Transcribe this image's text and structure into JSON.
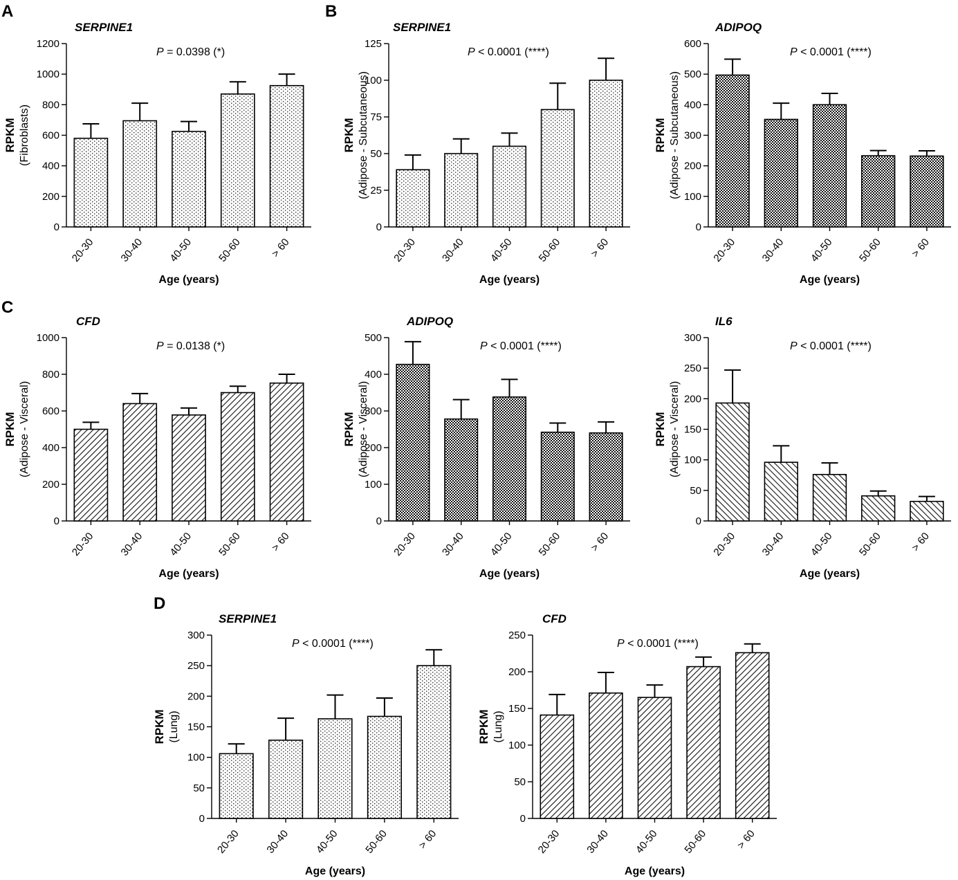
{
  "panels": [
    {
      "id": "A",
      "letter": "A"
    },
    {
      "id": "B",
      "letter": "B"
    },
    {
      "id": "C",
      "letter": "C"
    },
    {
      "id": "D",
      "letter": "D"
    }
  ],
  "chart_data": [
    {
      "id": "A-serpine1-fibroblasts",
      "panel": "A",
      "type": "bar",
      "title": "SERPINE1",
      "pvalue": {
        "label": "P",
        "text": " = 0.0398 (*)"
      },
      "ylabel": "RPKM",
      "ylabel_sub": "(Fibroblasts)",
      "xlabel": "Age (years)",
      "categories": [
        "20-30",
        "30-40",
        "40-50",
        "50-60",
        "> 60"
      ],
      "values": [
        580,
        695,
        625,
        870,
        925
      ],
      "errors": [
        95,
        115,
        65,
        80,
        75
      ],
      "ylim": [
        0,
        1200
      ],
      "yticks": [
        0,
        200,
        400,
        600,
        800,
        1000,
        1200
      ],
      "pattern": "dots"
    },
    {
      "id": "B-serpine1-subcutaneous",
      "panel": "B",
      "type": "bar",
      "title": "SERPINE1",
      "pvalue": {
        "label": "P",
        "text": " < 0.0001 (****)"
      },
      "ylabel": "RPKM",
      "ylabel_sub": "(Adipose - Subcutaneous)",
      "xlabel": "Age (years)",
      "categories": [
        "20-30",
        "30-40",
        "40-50",
        "50-60",
        "> 60"
      ],
      "values": [
        39,
        50,
        55,
        80,
        100
      ],
      "errors": [
        10,
        10,
        9,
        18,
        15
      ],
      "ylim": [
        0,
        125
      ],
      "yticks": [
        0,
        25,
        50,
        75,
        100,
        125
      ],
      "pattern": "dots"
    },
    {
      "id": "B-adipoq-subcutaneous",
      "panel": "B",
      "type": "bar",
      "title": "ADIPOQ",
      "pvalue": {
        "label": "P",
        "text": " < 0.0001 (****)"
      },
      "ylabel": "RPKM",
      "ylabel_sub": "(Adipose - Subcutaneous)",
      "xlabel": "Age (years)",
      "categories": [
        "20-30",
        "30-40",
        "40-50",
        "50-60",
        "> 60"
      ],
      "values": [
        497,
        352,
        400,
        233,
        232
      ],
      "errors": [
        52,
        53,
        37,
        17,
        17
      ],
      "ylim": [
        0,
        600
      ],
      "yticks": [
        0,
        100,
        200,
        300,
        400,
        500,
        600
      ],
      "pattern": "checker"
    },
    {
      "id": "C-cfd-visceral",
      "panel": "C",
      "type": "bar",
      "title": "CFD",
      "pvalue": {
        "label": "P",
        "text": " = 0.0138 (*)"
      },
      "ylabel": "RPKM",
      "ylabel_sub": "(Adipose - Visceral)",
      "xlabel": "Age (years)",
      "categories": [
        "20-30",
        "30-40",
        "40-50",
        "50-60",
        "> 60"
      ],
      "values": [
        500,
        640,
        578,
        700,
        752
      ],
      "errors": [
        38,
        55,
        38,
        35,
        48
      ],
      "ylim": [
        0,
        1000
      ],
      "yticks": [
        0,
        200,
        400,
        600,
        800,
        1000
      ],
      "pattern": "diag"
    },
    {
      "id": "C-adipoq-visceral",
      "panel": "C",
      "type": "bar",
      "title": "ADIPOQ",
      "pvalue": {
        "label": "P",
        "text": " < 0.0001 (****)"
      },
      "ylabel": "RPKM",
      "ylabel_sub": "(Adipose - Visceral)",
      "xlabel": "Age (years)",
      "categories": [
        "20-30",
        "30-40",
        "40-50",
        "50-60",
        "> 60"
      ],
      "values": [
        427,
        278,
        338,
        242,
        240
      ],
      "errors": [
        62,
        53,
        48,
        25,
        30
      ],
      "ylim": [
        0,
        500
      ],
      "yticks": [
        0,
        100,
        200,
        300,
        400,
        500
      ],
      "pattern": "checker"
    },
    {
      "id": "C-il6-visceral",
      "panel": "C",
      "type": "bar",
      "title": "IL6",
      "pvalue": {
        "label": "P",
        "text": " < 0.0001 (****)"
      },
      "ylabel": "RPKM",
      "ylabel_sub": "(Adipose - Visceral)",
      "xlabel": "Age (years)",
      "categories": [
        "20-30",
        "30-40",
        "40-50",
        "50-60",
        "> 60"
      ],
      "values": [
        193,
        96,
        76,
        41,
        32
      ],
      "errors": [
        54,
        27,
        19,
        8,
        8
      ],
      "ylim": [
        0,
        300
      ],
      "yticks": [
        0,
        50,
        100,
        150,
        200,
        250,
        300
      ],
      "pattern": "diag-back"
    },
    {
      "id": "D-serpine1-lung",
      "panel": "D",
      "type": "bar",
      "title": "SERPINE1",
      "pvalue": {
        "label": "P",
        "text": " < 0.0001 (****)"
      },
      "ylabel": "RPKM",
      "ylabel_sub": "(Lung)",
      "xlabel": "Age (years)",
      "categories": [
        "20-30",
        "30-40",
        "40-50",
        "50-60",
        "> 60"
      ],
      "values": [
        106,
        128,
        163,
        167,
        250
      ],
      "errors": [
        16,
        36,
        39,
        30,
        26
      ],
      "ylim": [
        0,
        300
      ],
      "yticks": [
        0,
        50,
        100,
        150,
        200,
        250,
        300
      ],
      "pattern": "dots"
    },
    {
      "id": "D-cfd-lung",
      "panel": "D",
      "type": "bar",
      "title": "CFD",
      "pvalue": {
        "label": "P",
        "text": " < 0.0001 (****)"
      },
      "ylabel": "RPKM",
      "ylabel_sub": "(Lung)",
      "xlabel": "Age (years)",
      "categories": [
        "20-30",
        "30-40",
        "40-50",
        "50-60",
        "> 60"
      ],
      "values": [
        141,
        171,
        165,
        207,
        226
      ],
      "errors": [
        28,
        28,
        17,
        13,
        12
      ],
      "ylim": [
        0,
        250
      ],
      "yticks": [
        0,
        50,
        100,
        150,
        200,
        250
      ],
      "pattern": "diag"
    }
  ]
}
